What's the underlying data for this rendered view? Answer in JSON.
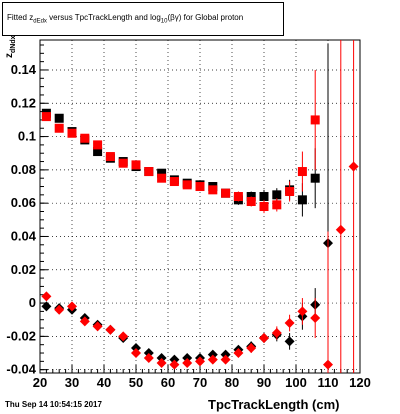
{
  "title": {
    "prefix": "Fitted z",
    "sub": "dEdx",
    "middle": " versus TpcTrackLength and log",
    "sub2": "10",
    "suffix": "(βγ) for Global proton"
  },
  "ylabel": {
    "main": "z",
    "sub": "dNdx"
  },
  "xlabel_text": "TpcTrackLength (cm)",
  "datestamp": "Thu Sep 14 10:54:15 2017",
  "chart_data": {
    "type": "scatter",
    "title": "Fitted zdEdx versus TpcTrackLength and log10(βγ) for Global proton",
    "xlabel": "TpcTrackLength (cm)",
    "ylabel": "zdNdx",
    "xlim": [
      20,
      120
    ],
    "ylim": [
      -0.042,
      0.158
    ],
    "x_ticks": [
      20,
      30,
      40,
      50,
      60,
      70,
      80,
      90,
      100,
      110,
      120
    ],
    "y_ticks": [
      -0.04,
      -0.02,
      0,
      0.02,
      0.04,
      0.06,
      0.08,
      0.1,
      0.12,
      0.14
    ],
    "series": [
      {
        "color": "#000000",
        "marker": "square",
        "points": [
          [
            22,
            0.114,
            0.002
          ],
          [
            26,
            0.111,
            0.002
          ],
          [
            30,
            0.103,
            0.002
          ],
          [
            34,
            0.098,
            0.002
          ],
          [
            38,
            0.091,
            0.002
          ],
          [
            42,
            0.087,
            0.002
          ],
          [
            46,
            0.085,
            0.002
          ],
          [
            50,
            0.082,
            0.002
          ],
          [
            54,
            0.079,
            0.002
          ],
          [
            58,
            0.078,
            0.002
          ],
          [
            62,
            0.074,
            0.002
          ],
          [
            66,
            0.072,
            0.002
          ],
          [
            70,
            0.071,
            0.002
          ],
          [
            74,
            0.07,
            0.002
          ],
          [
            78,
            0.066,
            0.002
          ],
          [
            82,
            0.062,
            0.003
          ],
          [
            86,
            0.064,
            0.003
          ],
          [
            90,
            0.064,
            0.004
          ],
          [
            94,
            0.065,
            0.004
          ],
          [
            98,
            0.068,
            0.006
          ],
          [
            102,
            0.062,
            0.01
          ],
          [
            106,
            0.075,
            0.018
          ]
        ]
      },
      {
        "color": "#ff0000",
        "marker": "square",
        "points": [
          [
            22,
            0.112,
            0.002
          ],
          [
            26,
            0.105,
            0.002
          ],
          [
            30,
            0.102,
            0.002
          ],
          [
            34,
            0.099,
            0.002
          ],
          [
            38,
            0.095,
            0.002
          ],
          [
            42,
            0.088,
            0.002
          ],
          [
            46,
            0.084,
            0.002
          ],
          [
            50,
            0.083,
            0.002
          ],
          [
            54,
            0.079,
            0.002
          ],
          [
            58,
            0.075,
            0.002
          ],
          [
            62,
            0.073,
            0.002
          ],
          [
            66,
            0.071,
            0.002
          ],
          [
            70,
            0.07,
            0.002
          ],
          [
            74,
            0.068,
            0.002
          ],
          [
            78,
            0.066,
            0.002
          ],
          [
            82,
            0.064,
            0.003
          ],
          [
            86,
            0.061,
            0.003
          ],
          [
            90,
            0.058,
            0.004
          ],
          [
            94,
            0.059,
            0.004
          ],
          [
            98,
            0.067,
            0.006
          ],
          [
            102,
            0.079,
            0.012
          ],
          [
            106,
            0.11,
            0.03
          ]
        ]
      },
      {
        "color": "#000000",
        "marker": "diamond",
        "points": [
          [
            22,
            -0.002,
            0.002
          ],
          [
            26,
            -0.003,
            0.002
          ],
          [
            30,
            -0.004,
            0.002
          ],
          [
            34,
            -0.009,
            0.002
          ],
          [
            38,
            -0.013,
            0.002
          ],
          [
            42,
            -0.016,
            0.002
          ],
          [
            46,
            -0.021,
            0.002
          ],
          [
            50,
            -0.027,
            0.002
          ],
          [
            54,
            -0.03,
            0.002
          ],
          [
            58,
            -0.033,
            0.002
          ],
          [
            62,
            -0.034,
            0.002
          ],
          [
            66,
            -0.033,
            0.002
          ],
          [
            70,
            -0.033,
            0.002
          ],
          [
            74,
            -0.031,
            0.002
          ],
          [
            78,
            -0.031,
            0.002
          ],
          [
            82,
            -0.028,
            0.002
          ],
          [
            86,
            -0.026,
            0.003
          ],
          [
            90,
            -0.021,
            0.003
          ],
          [
            94,
            -0.019,
            0.004
          ],
          [
            98,
            -0.023,
            0.005
          ],
          [
            102,
            -0.008,
            0.008
          ],
          [
            106,
            -0.001,
            0.01
          ],
          [
            110,
            0.036,
            0.12
          ]
        ]
      },
      {
        "color": "#ff0000",
        "marker": "diamond",
        "points": [
          [
            22,
            0.004,
            0.002
          ],
          [
            26,
            -0.004,
            0.002
          ],
          [
            30,
            -0.002,
            0.002
          ],
          [
            34,
            -0.011,
            0.002
          ],
          [
            38,
            -0.014,
            0.002
          ],
          [
            42,
            -0.016,
            0.002
          ],
          [
            46,
            -0.02,
            0.002
          ],
          [
            50,
            -0.03,
            0.002
          ],
          [
            54,
            -0.033,
            0.002
          ],
          [
            58,
            -0.036,
            0.002
          ],
          [
            62,
            -0.037,
            0.002
          ],
          [
            66,
            -0.036,
            0.002
          ],
          [
            70,
            -0.035,
            0.002
          ],
          [
            74,
            -0.034,
            0.002
          ],
          [
            78,
            -0.034,
            0.002
          ],
          [
            82,
            -0.03,
            0.002
          ],
          [
            86,
            -0.027,
            0.003
          ],
          [
            90,
            -0.021,
            0.003
          ],
          [
            94,
            -0.018,
            0.004
          ],
          [
            98,
            -0.012,
            0.005
          ],
          [
            102,
            -0.005,
            0.008
          ],
          [
            106,
            -0.009,
            0.012
          ],
          [
            110,
            -0.037,
            0.08
          ],
          [
            114,
            0.044,
            0.12
          ],
          [
            118,
            0.082,
            0.13
          ]
        ]
      }
    ]
  }
}
